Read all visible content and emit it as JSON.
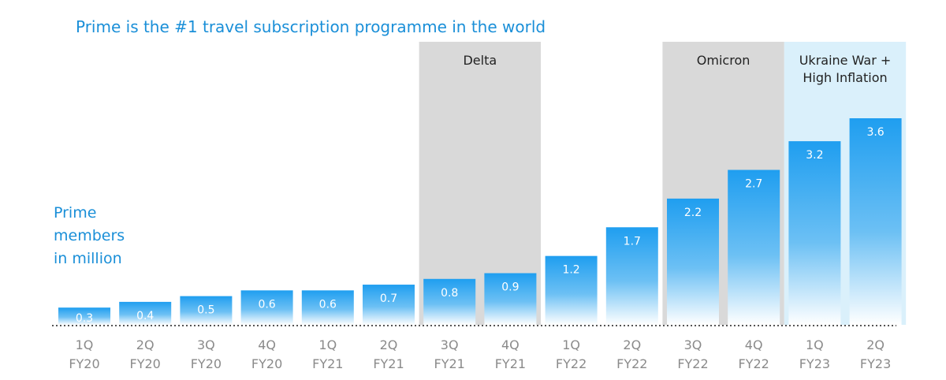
{
  "chart_data": {
    "type": "bar",
    "title": "Prime is the #1 travel subscription programme in the world",
    "ylabel_lines": [
      "Prime",
      "members",
      "in million"
    ],
    "categories": [
      [
        "1Q",
        "FY20"
      ],
      [
        "2Q",
        "FY20"
      ],
      [
        "3Q",
        "FY20"
      ],
      [
        "4Q",
        "FY20"
      ],
      [
        "1Q",
        "FY21"
      ],
      [
        "2Q",
        "FY21"
      ],
      [
        "3Q",
        "FY21"
      ],
      [
        "4Q",
        "FY21"
      ],
      [
        "1Q",
        "FY22"
      ],
      [
        "2Q",
        "FY22"
      ],
      [
        "3Q",
        "FY22"
      ],
      [
        "4Q",
        "FY22"
      ],
      [
        "1Q",
        "FY23"
      ],
      [
        "2Q",
        "FY23"
      ]
    ],
    "values": [
      0.3,
      0.4,
      0.5,
      0.6,
      0.6,
      0.7,
      0.8,
      0.9,
      1.2,
      1.7,
      2.2,
      2.7,
      3.2,
      3.6
    ],
    "value_labels": [
      "0.3",
      "0.4",
      "0.5",
      "0.6",
      "0.6",
      "0.7",
      "0.8",
      "0.9",
      "1.2",
      "1.7",
      "2.2",
      "2.7",
      "3.2",
      "3.6"
    ],
    "highlighted_periods": [
      {
        "lines": [
          "Delta"
        ],
        "from_index": 6,
        "to_index": 7,
        "color": "#d9d9d9"
      },
      {
        "lines": [
          "Omicron"
        ],
        "from_index": 10,
        "to_index": 11,
        "color": "#d9d9d9"
      },
      {
        "lines": [
          "Ukraine War +",
          "High Inflation"
        ],
        "from_index": 12,
        "to_index": 13,
        "color": "#daf0fb"
      }
    ],
    "ylim": [
      0,
      3.6
    ],
    "grid": false,
    "legend": "none",
    "colors": {
      "bar_top": "#1f9ef0",
      "bar_bottom": "#ffffff",
      "title": "#1a8fd8",
      "tick": "#8a8a8a",
      "baseline": "#555555"
    }
  }
}
